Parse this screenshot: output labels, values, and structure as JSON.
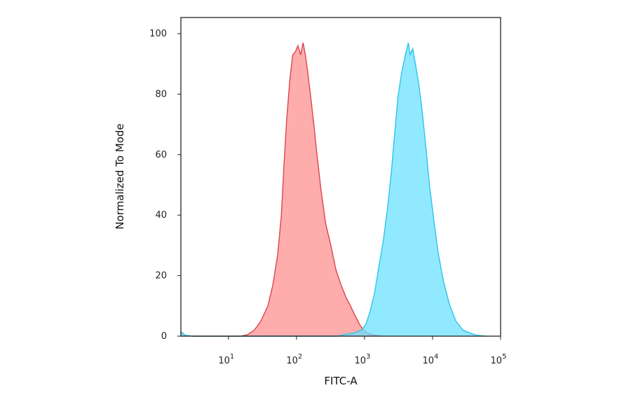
{
  "chart_data": {
    "type": "area",
    "title": "",
    "xlabel": "FITC-A",
    "ylabel": "Normalized To Mode",
    "x_scale": "log",
    "xlim": [
      2,
      100000
    ],
    "ylim": [
      0,
      100
    ],
    "grid": false,
    "legend": "none",
    "x_ticks": [
      {
        "value": 10,
        "base": "10",
        "exp": "1"
      },
      {
        "value": 100,
        "base": "10",
        "exp": "2"
      },
      {
        "value": 1000,
        "base": "10",
        "exp": "3"
      },
      {
        "value": 10000,
        "base": "10",
        "exp": "4"
      },
      {
        "value": 100000,
        "base": "10",
        "exp": "5"
      }
    ],
    "y_ticks": [
      {
        "value": 0,
        "label": "0"
      },
      {
        "value": 20,
        "label": "20"
      },
      {
        "value": 40,
        "label": "40"
      },
      {
        "value": 60,
        "label": "60"
      },
      {
        "value": 80,
        "label": "80"
      },
      {
        "value": 100,
        "label": "100"
      }
    ],
    "series": [
      {
        "color": "#d9474a",
        "fill": "#ff8c8c",
        "points": [
          [
            2,
            1.5
          ],
          [
            2.3,
            0.3
          ],
          [
            3,
            0
          ],
          [
            15,
            0
          ],
          [
            19,
            0.5
          ],
          [
            24,
            2
          ],
          [
            30,
            5
          ],
          [
            38,
            10
          ],
          [
            45,
            17
          ],
          [
            53,
            27
          ],
          [
            60,
            40
          ],
          [
            66,
            58
          ],
          [
            72,
            72
          ],
          [
            80,
            85
          ],
          [
            88,
            93
          ],
          [
            96,
            94
          ],
          [
            105,
            96
          ],
          [
            115,
            93
          ],
          [
            125,
            97
          ],
          [
            135,
            93
          ],
          [
            145,
            88
          ],
          [
            160,
            80
          ],
          [
            180,
            70
          ],
          [
            200,
            60
          ],
          [
            230,
            48
          ],
          [
            270,
            37
          ],
          [
            320,
            30
          ],
          [
            380,
            22
          ],
          [
            450,
            17
          ],
          [
            530,
            13
          ],
          [
            620,
            10
          ],
          [
            720,
            7
          ],
          [
            840,
            4
          ],
          [
            960,
            2
          ],
          [
            1100,
            1
          ],
          [
            1400,
            0.3
          ],
          [
            1800,
            0
          ]
        ]
      },
      {
        "color": "#2ec4ea",
        "fill": "#66e0ff",
        "points": [
          [
            2,
            1.5
          ],
          [
            2.3,
            0.3
          ],
          [
            3,
            0
          ],
          [
            400,
            0
          ],
          [
            500,
            0.5
          ],
          [
            700,
            1
          ],
          [
            900,
            2
          ],
          [
            1050,
            4
          ],
          [
            1200,
            8
          ],
          [
            1400,
            14
          ],
          [
            1600,
            22
          ],
          [
            1900,
            32
          ],
          [
            2200,
            43
          ],
          [
            2500,
            55
          ],
          [
            2800,
            68
          ],
          [
            3100,
            79
          ],
          [
            3500,
            87
          ],
          [
            4000,
            93
          ],
          [
            4400,
            97
          ],
          [
            4700,
            93
          ],
          [
            5100,
            95
          ],
          [
            5600,
            90
          ],
          [
            6200,
            84
          ],
          [
            7000,
            75
          ],
          [
            8000,
            62
          ],
          [
            9000,
            50
          ],
          [
            10500,
            38
          ],
          [
            12000,
            28
          ],
          [
            14500,
            18
          ],
          [
            18000,
            10
          ],
          [
            22000,
            5
          ],
          [
            28000,
            2
          ],
          [
            36000,
            1
          ],
          [
            45000,
            0.3
          ],
          [
            60000,
            0
          ]
        ]
      }
    ]
  }
}
